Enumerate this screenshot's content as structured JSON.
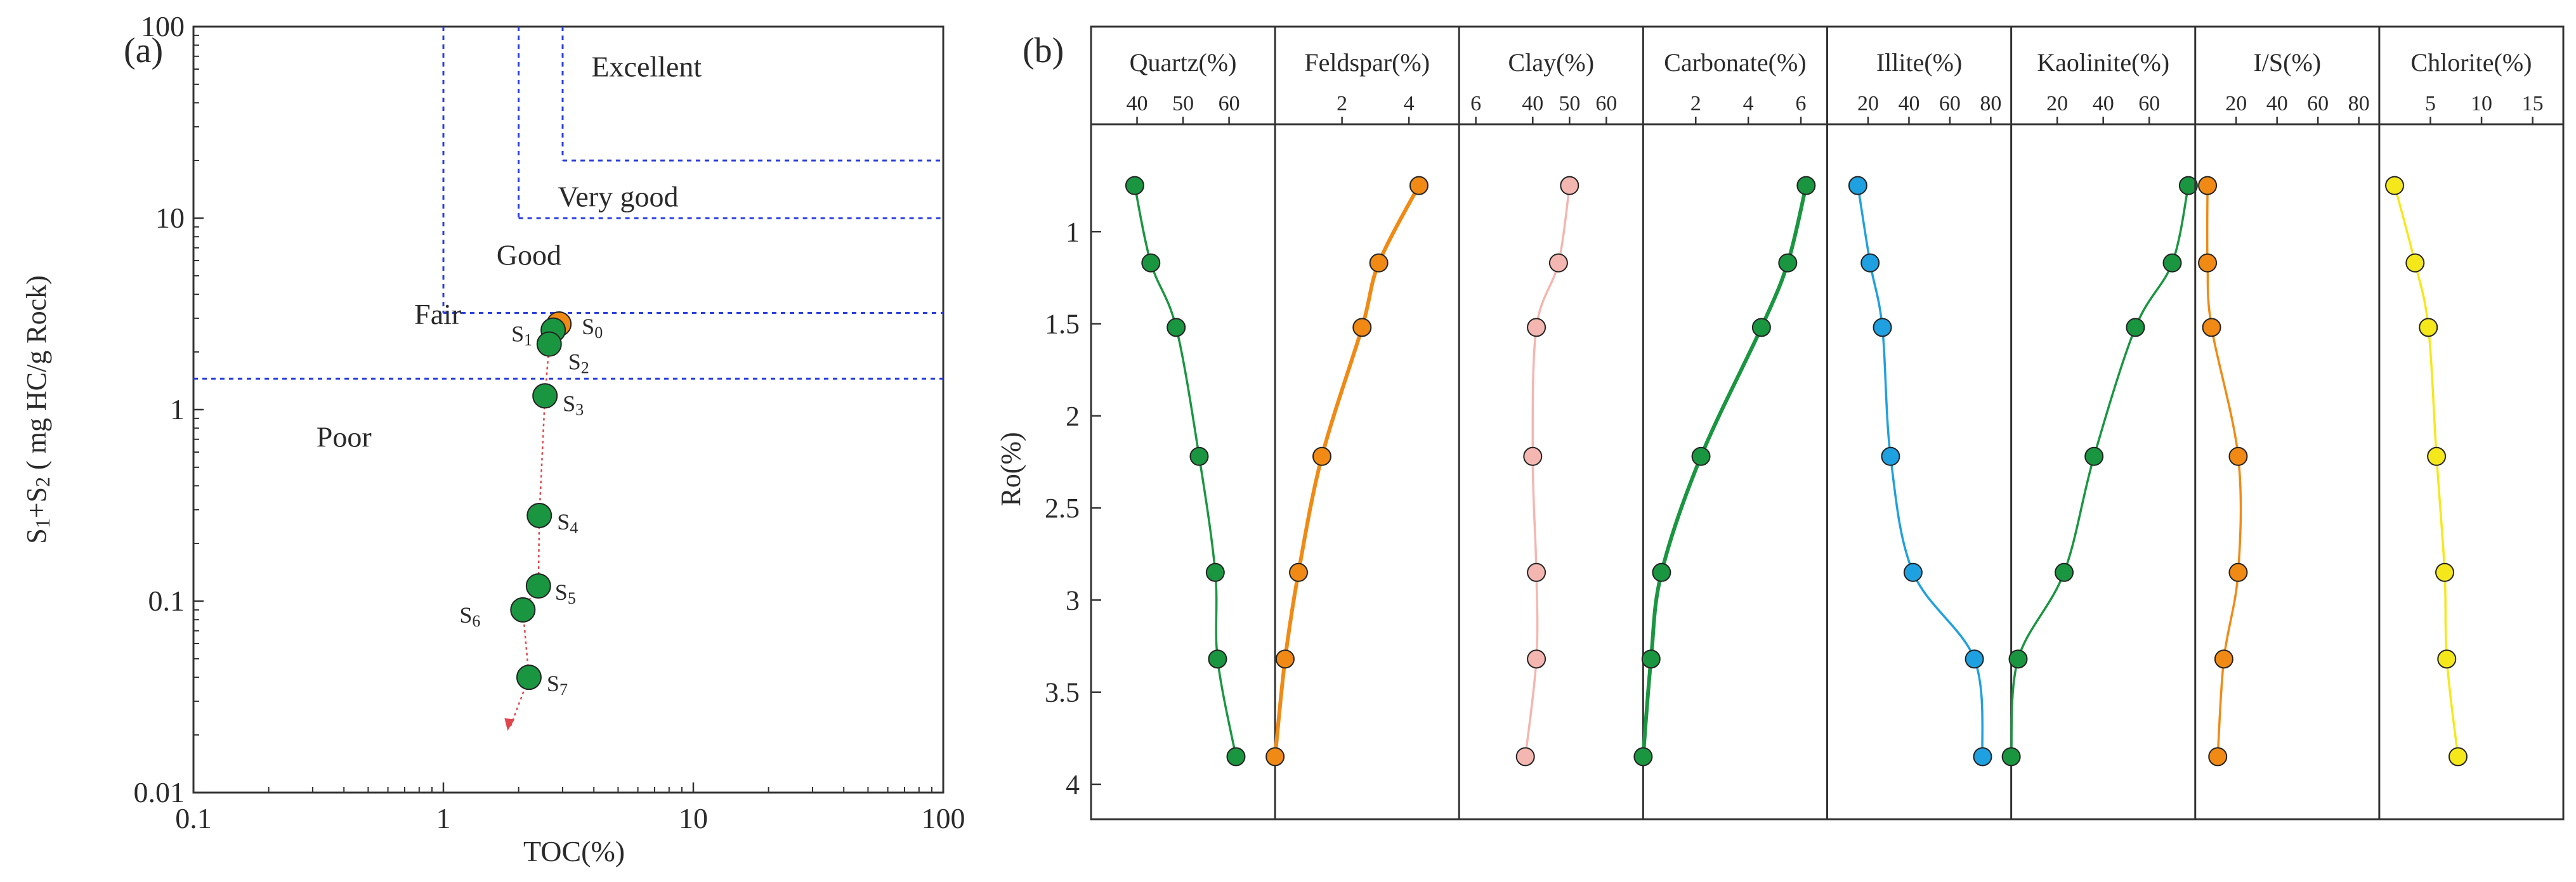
{
  "figure": {
    "panel_a_label": "(a)",
    "panel_b_label": "(b)"
  },
  "chart_data": [
    {
      "id": "a",
      "type": "scatter",
      "title": "",
      "xlabel": "TOC(%)",
      "ylabel": "S1+S2 ( mg HC/g Rock)",
      "xscale": "log",
      "yscale": "log",
      "xlim": [
        0.1,
        100
      ],
      "ylim": [
        0.01,
        100
      ],
      "x_ticks": [
        "0.1",
        "1",
        "10",
        "100"
      ],
      "y_ticks": [
        "0.01",
        "0.1",
        "1",
        "10",
        "100"
      ],
      "grid": false,
      "grade_boundaries": {
        "poor_fair_s1s2": 1.45,
        "fair_good_toc": 1.0,
        "fair_good_s1s2": 3.2,
        "good_verygood_toc": 2.0,
        "good_verygood_s1s2": 10,
        "verygood_excellent_toc": 3.0,
        "verygood_excellent_s1s2": 20
      },
      "grade_labels": [
        {
          "text": "Excellent",
          "x": 6.5,
          "y": 55
        },
        {
          "text": "Very good",
          "x": 5.0,
          "y": 11.5
        },
        {
          "text": "Good",
          "x": 2.2,
          "y": 5.7
        },
        {
          "text": "Fair",
          "x": 0.95,
          "y": 2.8
        },
        {
          "text": "Poor",
          "x": 0.4,
          "y": 0.64
        }
      ],
      "points": [
        {
          "label": "S0",
          "x": 2.9,
          "y": 2.8,
          "color": "#f08a14"
        },
        {
          "label": "S1",
          "x": 2.75,
          "y": 2.6,
          "color": "#1a9641"
        },
        {
          "label": "S2",
          "x": 2.65,
          "y": 2.2,
          "color": "#1a9641"
        },
        {
          "label": "S3",
          "x": 2.55,
          "y": 1.18,
          "color": "#1a9641"
        },
        {
          "label": "S4",
          "x": 2.42,
          "y": 0.28,
          "color": "#1a9641"
        },
        {
          "label": "S5",
          "x": 2.4,
          "y": 0.12,
          "color": "#1a9641"
        },
        {
          "label": "S6",
          "x": 2.08,
          "y": 0.09,
          "color": "#1a9641"
        },
        {
          "label": "S7",
          "x": 2.2,
          "y": 0.04,
          "color": "#1a9641"
        }
      ],
      "trend_color": "#e0474c"
    },
    {
      "id": "b",
      "type": "line",
      "title": "",
      "ylabel": "Ro(%)",
      "ylim": [
        0.5,
        4.1
      ],
      "y_ticks": [
        1,
        1.5,
        2,
        2.5,
        3,
        3.5,
        4
      ],
      "y": [
        0.75,
        1.17,
        1.52,
        2.22,
        2.85,
        3.32,
        3.85
      ],
      "tracks": [
        {
          "name": "Quartz(%)",
          "xlim": [
            30,
            70
          ],
          "ticks": [
            40,
            50,
            60
          ],
          "color": "#1a9641",
          "values": [
            39.5,
            43,
            48.5,
            53.5,
            57,
            57.5,
            61.5
          ]
        },
        {
          "name": "Feldspar(%)",
          "xlim": [
            0,
            5.5
          ],
          "ticks": [
            2,
            4,
            6
          ],
          "color": "#f08a14",
          "values": [
            4.3,
            3.1,
            2.6,
            1.4,
            0.7,
            0.3,
            0.0
          ]
        },
        {
          "name": "Clay(%)",
          "xlim": [
            20,
            70
          ],
          "ticks": [
            40,
            50,
            60
          ],
          "color": "#f4b6b0",
          "values": [
            50,
            47,
            41,
            40,
            41,
            41,
            38
          ]
        },
        {
          "name": "Carbonate(%)",
          "xlim": [
            0,
            7
          ],
          "ticks": [
            2,
            4,
            6
          ],
          "color": "#1a9641",
          "values": [
            6.2,
            5.5,
            4.5,
            2.2,
            0.7,
            0.3,
            0.0
          ]
        },
        {
          "name": "Illite(%)",
          "xlim": [
            0,
            90
          ],
          "ticks": [
            20,
            40,
            60,
            80
          ],
          "color": "#1fa0e0",
          "values": [
            15,
            21,
            27,
            31,
            42,
            72,
            76
          ]
        },
        {
          "name": "Kaolinite(%)",
          "xlim": [
            0,
            80
          ],
          "ticks": [
            20,
            40,
            60
          ],
          "color": "#1a9641",
          "values": [
            77,
            70,
            54,
            36,
            23,
            3,
            0
          ]
        },
        {
          "name": "I/S(%)",
          "xlim": [
            0,
            90
          ],
          "ticks": [
            20,
            40,
            60,
            80
          ],
          "color": "#f08a14",
          "values": [
            6,
            6,
            8,
            21,
            21,
            14,
            11
          ]
        },
        {
          "name": "Chlorite(%)",
          "xlim": [
            0,
            18
          ],
          "ticks": [
            5,
            10,
            15
          ],
          "color": "#f5e81a",
          "values": [
            1.5,
            3.5,
            4.8,
            5.6,
            6.4,
            6.6,
            7.7
          ]
        }
      ]
    }
  ]
}
